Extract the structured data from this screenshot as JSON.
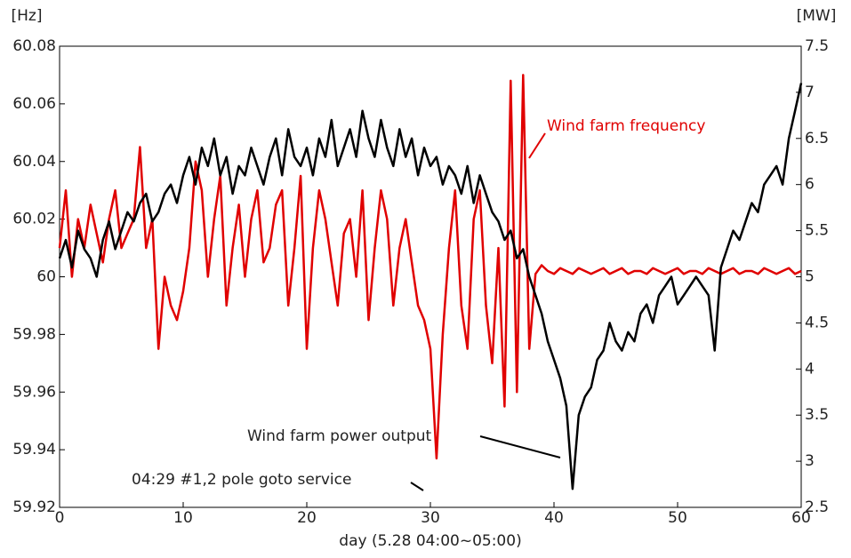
{
  "chart_data": {
    "type": "line",
    "xlabel": "day (5.28  04:00~05:00)",
    "ylabel": "[Hz]",
    "y2label": "[MW]",
    "annotations": [
      "Wind farm frequency",
      "Wind farm power output",
      "04:29 #1,2 pole goto service"
    ],
    "xlim": [
      0,
      60
    ],
    "xticks": [
      0,
      10,
      20,
      30,
      40,
      50,
      60
    ],
    "ylim": [
      59.92,
      60.08
    ],
    "yticks": [
      59.92,
      59.94,
      59.96,
      59.98,
      60,
      60.02,
      60.04,
      60.06,
      60.08
    ],
    "y2lim": [
      2.5,
      7.5
    ],
    "y2ticks": [
      2.5,
      3,
      3.5,
      4,
      4.5,
      5,
      5.5,
      6,
      6.5,
      7,
      7.5
    ],
    "x": [
      0,
      0.5,
      1,
      1.5,
      2,
      2.5,
      3,
      3.5,
      4,
      4.5,
      5,
      5.5,
      6,
      6.5,
      7,
      7.5,
      8,
      8.5,
      9,
      9.5,
      10,
      10.5,
      11,
      11.5,
      12,
      12.5,
      13,
      13.5,
      14,
      14.5,
      15,
      15.5,
      16,
      16.5,
      17,
      17.5,
      18,
      18.5,
      19,
      19.5,
      20,
      20.5,
      21,
      21.5,
      22,
      22.5,
      23,
      23.5,
      24,
      24.5,
      25,
      25.5,
      26,
      26.5,
      27,
      27.5,
      28,
      28.5,
      29,
      29.5,
      30,
      30.5,
      31,
      31.5,
      32,
      32.5,
      33,
      33.5,
      34,
      34.5,
      35,
      35.5,
      36,
      36.5,
      37,
      37.5,
      38,
      38.5,
      39,
      39.5,
      40,
      40.5,
      41,
      41.5,
      42,
      42.5,
      43,
      43.5,
      44,
      44.5,
      45,
      45.5,
      46,
      46.5,
      47,
      47.5,
      48,
      48.5,
      49,
      49.5,
      50,
      50.5,
      51,
      51.5,
      52,
      52.5,
      53,
      53.5,
      54,
      54.5,
      55,
      55.5,
      56,
      56.5,
      57,
      57.5,
      58,
      58.5,
      59,
      59.5,
      60
    ],
    "series": [
      {
        "name": "Wind farm frequency",
        "color": "#e00000",
        "axis": "y",
        "values": [
          60.01,
          60.03,
          60.0,
          60.02,
          60.01,
          60.025,
          60.015,
          60.005,
          60.02,
          60.03,
          60.01,
          60.015,
          60.02,
          60.045,
          60.01,
          60.02,
          59.975,
          60.0,
          59.99,
          59.985,
          59.995,
          60.01,
          60.04,
          60.03,
          60.0,
          60.02,
          60.035,
          59.99,
          60.01,
          60.025,
          60.0,
          60.02,
          60.03,
          60.005,
          60.01,
          60.025,
          60.03,
          59.99,
          60.01,
          60.035,
          59.975,
          60.01,
          60.03,
          60.02,
          60.005,
          59.99,
          60.015,
          60.02,
          60.0,
          60.03,
          59.985,
          60.01,
          60.03,
          60.02,
          59.99,
          60.01,
          60.02,
          60.005,
          59.99,
          59.985,
          59.975,
          59.937,
          59.98,
          60.01,
          60.03,
          59.99,
          59.975,
          60.02,
          60.03,
          59.99,
          59.97,
          60.01,
          59.955,
          60.068,
          59.96,
          60.07,
          59.975,
          60.001,
          60.004,
          60.002,
          60.001,
          60.003,
          60.002,
          60.001,
          60.003,
          60.002,
          60.001,
          60.002,
          60.003,
          60.001,
          60.002,
          60.003,
          60.001,
          60.002,
          60.002,
          60.001,
          60.003,
          60.002,
          60.001,
          60.002,
          60.003,
          60.001,
          60.002,
          60.002,
          60.001,
          60.003,
          60.002,
          60.001,
          60.002,
          60.003,
          60.001,
          60.002,
          60.002,
          60.001,
          60.003,
          60.002,
          60.001,
          60.002,
          60.003,
          60.001,
          60.002
        ]
      },
      {
        "name": "Wind farm power output",
        "color": "#000000",
        "axis": "y2",
        "values": [
          5.2,
          5.4,
          5.1,
          5.5,
          5.3,
          5.2,
          5.0,
          5.4,
          5.6,
          5.3,
          5.5,
          5.7,
          5.6,
          5.8,
          5.9,
          5.6,
          5.7,
          5.9,
          6.0,
          5.8,
          6.1,
          6.3,
          6.0,
          6.4,
          6.2,
          6.5,
          6.1,
          6.3,
          5.9,
          6.2,
          6.1,
          6.4,
          6.2,
          6.0,
          6.3,
          6.5,
          6.1,
          6.6,
          6.3,
          6.2,
          6.4,
          6.1,
          6.5,
          6.3,
          6.7,
          6.2,
          6.4,
          6.6,
          6.3,
          6.8,
          6.5,
          6.3,
          6.7,
          6.4,
          6.2,
          6.6,
          6.3,
          6.5,
          6.1,
          6.4,
          6.2,
          6.3,
          6.0,
          6.2,
          6.1,
          5.9,
          6.2,
          5.8,
          6.1,
          5.9,
          5.7,
          5.6,
          5.4,
          5.5,
          5.2,
          5.3,
          5.0,
          4.8,
          4.6,
          4.3,
          4.1,
          3.9,
          3.6,
          2.7,
          3.5,
          3.7,
          3.8,
          4.1,
          4.2,
          4.5,
          4.3,
          4.2,
          4.4,
          4.3,
          4.6,
          4.7,
          4.5,
          4.8,
          4.9,
          5.0,
          4.7,
          4.8,
          4.9,
          5.0,
          4.9,
          4.8,
          4.2,
          5.1,
          5.3,
          5.5,
          5.4,
          5.6,
          5.8,
          5.7,
          6.0,
          6.1,
          6.2,
          6.0,
          6.5,
          6.8,
          7.1
        ]
      }
    ]
  }
}
